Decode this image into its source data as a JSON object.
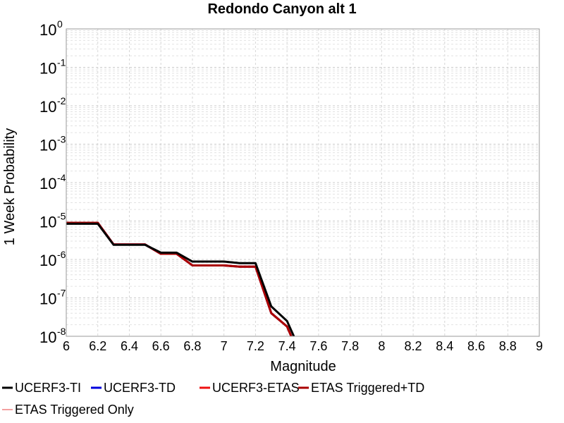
{
  "chart_data": {
    "type": "line",
    "title": "Redondo Canyon alt 1",
    "xlabel": "Magnitude",
    "ylabel": "1 Week Probability",
    "xlim": [
      6,
      9
    ],
    "ylim": [
      1e-08,
      1
    ],
    "yscale": "log",
    "grid": true,
    "x_ticks": [
      "6",
      "6.2",
      "6.4",
      "6.6",
      "6.8",
      "7",
      "7.2",
      "7.4",
      "7.6",
      "7.8",
      "8",
      "8.2",
      "8.4",
      "8.6",
      "8.8",
      "9"
    ],
    "y_ticks": [
      {
        "base": "10",
        "exp": "0"
      },
      {
        "base": "10",
        "exp": "-1"
      },
      {
        "base": "10",
        "exp": "-2"
      },
      {
        "base": "10",
        "exp": "-3"
      },
      {
        "base": "10",
        "exp": "-4"
      },
      {
        "base": "10",
        "exp": "-5"
      },
      {
        "base": "10",
        "exp": "-6"
      },
      {
        "base": "10",
        "exp": "-7"
      },
      {
        "base": "10",
        "exp": "-8"
      }
    ],
    "legend_position": "bottom",
    "series": [
      {
        "name": "UCERF3-TI",
        "color": "#000000",
        "width": 3,
        "x": [
          6.0,
          6.2,
          6.3,
          6.5,
          6.6,
          6.7,
          6.8,
          7.0,
          7.1,
          7.2,
          7.3,
          7.4,
          7.5
        ],
        "y": [
          8.5e-06,
          8.5e-06,
          2.4e-06,
          2.4e-06,
          1.5e-06,
          1.5e-06,
          8.8e-07,
          8.8e-07,
          8e-07,
          8e-07,
          6e-08,
          2.5e-08,
          3e-09
        ]
      },
      {
        "name": "UCERF3-TD",
        "color": "#0000dd",
        "width": 3,
        "x": [
          6.0,
          6.2,
          6.3,
          6.5,
          6.6,
          6.7,
          6.8,
          7.0,
          7.1,
          7.2,
          7.3,
          7.4,
          7.5
        ],
        "y": [
          9e-06,
          9e-06,
          2.45e-06,
          2.45e-06,
          1.4e-06,
          1.4e-06,
          7e-07,
          7e-07,
          6.5e-07,
          6.5e-07,
          4e-08,
          1.8e-08,
          2e-09
        ]
      },
      {
        "name": "UCERF3-ETAS",
        "color": "#ee1111",
        "width": 3,
        "x": [
          6.0,
          6.2,
          6.3,
          6.5,
          6.6,
          6.7,
          6.8,
          7.0,
          7.1,
          7.2,
          7.3,
          7.4,
          7.5
        ],
        "y": [
          9e-06,
          9e-06,
          2.45e-06,
          2.45e-06,
          1.4e-06,
          1.4e-06,
          7e-07,
          7e-07,
          6.5e-07,
          6.5e-07,
          4e-08,
          1.8e-08,
          2e-09
        ]
      },
      {
        "name": "ETAS Triggered+TD",
        "color": "#aa0000",
        "width": 3,
        "x": [
          6.0,
          6.2,
          6.3,
          6.5,
          6.6,
          6.7,
          6.8,
          7.0,
          7.1,
          7.2,
          7.3,
          7.4,
          7.5
        ],
        "y": [
          9e-06,
          9e-06,
          2.45e-06,
          2.45e-06,
          1.4e-06,
          1.4e-06,
          7e-07,
          7e-07,
          6.5e-07,
          6.5e-07,
          4e-08,
          1.8e-08,
          2e-09
        ]
      },
      {
        "name": "ETAS Triggered Only",
        "color": "#f08080",
        "width": 1.5,
        "x": [],
        "y": []
      }
    ]
  }
}
